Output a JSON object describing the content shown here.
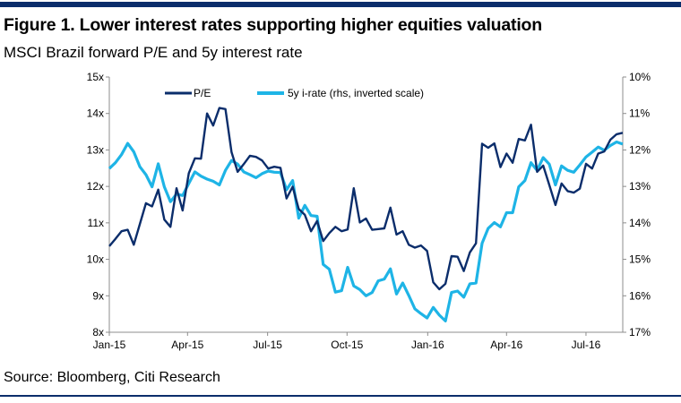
{
  "header": {
    "title": "Figure 1. Lower interest rates supporting higher equities valuation",
    "subtitle": "MSCI Brazil forward P/E and 5y interest rate"
  },
  "footer": {
    "source": "Source: Bloomberg, Citi Research"
  },
  "colors": {
    "bar": "#0b2d6b",
    "pe": "#0b2d6b",
    "rate": "#1eb4e6",
    "axis": "#8c8c8c"
  },
  "chart_data": {
    "type": "line",
    "title": "MSCI Brazil forward P/E and 5y interest rate",
    "x_unit": "weeks since Jan-15",
    "x_ticks": [
      {
        "label": "Jan-15",
        "week": 0
      },
      {
        "label": "Apr-15",
        "week": 12.8
      },
      {
        "label": "Jul-15",
        "week": 25.9
      },
      {
        "label": "Oct-15",
        "week": 38.9
      },
      {
        "label": "Jan-16",
        "week": 52.1
      },
      {
        "label": "Apr-16",
        "week": 65
      },
      {
        "label": "Jul-16",
        "week": 78
      }
    ],
    "y_left": {
      "ylim": [
        8,
        15
      ],
      "ticks": [
        "8x",
        "9x",
        "10x",
        "11x",
        "12x",
        "13x",
        "14x",
        "15x"
      ]
    },
    "y_right": {
      "ylim": [
        10,
        17
      ],
      "inverted": true,
      "ticks": [
        "10%",
        "11%",
        "12%",
        "13%",
        "14%",
        "15%",
        "16%",
        "17%"
      ]
    },
    "legend": {
      "placement": "top-center"
    },
    "series": [
      {
        "name": "P/E",
        "axis": "left",
        "values": [
          10.36,
          10.56,
          10.77,
          10.81,
          10.4,
          10.97,
          11.54,
          11.45,
          11.91,
          11.09,
          10.89,
          11.95,
          11.34,
          12.36,
          12.77,
          12.76,
          14.0,
          13.67,
          14.15,
          14.12,
          12.94,
          12.4,
          12.61,
          12.84,
          12.81,
          12.71,
          12.49,
          12.54,
          12.51,
          11.67,
          11.99,
          11.38,
          11.22,
          10.77,
          11.05,
          10.5,
          10.72,
          10.89,
          10.77,
          10.82,
          11.95,
          11.01,
          11.12,
          10.81,
          10.83,
          10.85,
          11.42,
          10.68,
          10.77,
          10.4,
          10.32,
          10.38,
          10.23,
          9.37,
          9.18,
          9.33,
          10.09,
          10.07,
          9.68,
          10.19,
          10.44,
          13.17,
          13.06,
          13.18,
          12.53,
          12.9,
          12.65,
          13.3,
          13.26,
          13.69,
          12.4,
          12.57,
          12.04,
          11.49,
          12.08,
          11.87,
          11.83,
          11.94,
          12.62,
          12.49,
          12.9,
          12.96,
          13.28,
          13.43,
          13.47
        ]
      },
      {
        "name": "5y i-rate (rhs, inverted scale)",
        "axis": "right",
        "values": [
          12.51,
          12.35,
          12.13,
          11.82,
          12.05,
          12.46,
          12.68,
          13.01,
          12.38,
          13.01,
          13.42,
          13.21,
          13.25,
          12.92,
          12.6,
          12.72,
          12.8,
          12.86,
          12.96,
          12.56,
          12.29,
          12.39,
          12.6,
          12.68,
          12.76,
          12.65,
          12.58,
          12.61,
          12.62,
          13.09,
          12.84,
          13.87,
          13.52,
          13.8,
          13.82,
          15.14,
          15.27,
          15.9,
          15.86,
          15.22,
          15.73,
          15.83,
          16.0,
          15.91,
          15.59,
          15.54,
          15.26,
          15.95,
          15.65,
          15.99,
          16.36,
          16.49,
          16.61,
          16.32,
          16.53,
          16.69,
          15.91,
          15.87,
          16.04,
          15.67,
          15.65,
          14.56,
          14.15,
          13.99,
          14.11,
          13.72,
          13.72,
          13.01,
          12.84,
          12.35,
          12.56,
          12.21,
          12.39,
          12.96,
          12.44,
          12.56,
          12.61,
          12.41,
          12.19,
          12.06,
          11.92,
          12.01,
          11.88,
          11.78,
          11.84
        ]
      }
    ]
  }
}
